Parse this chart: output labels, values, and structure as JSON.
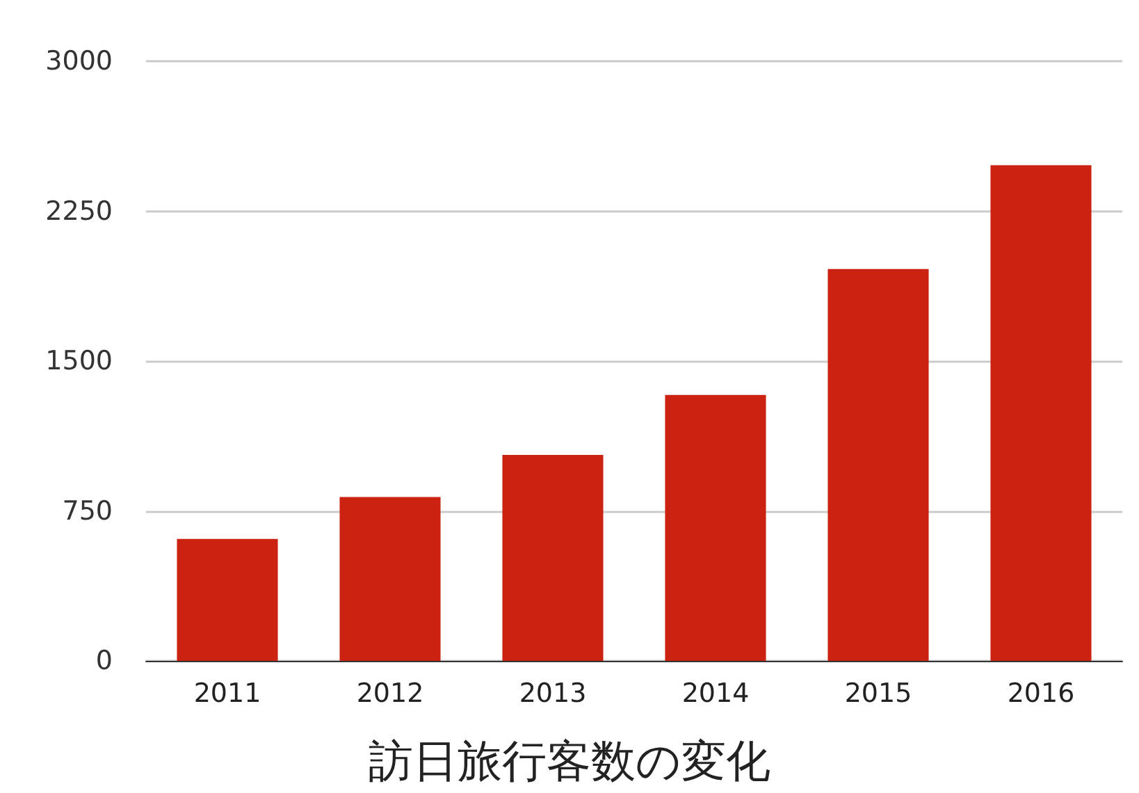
{
  "chart_data": {
    "type": "bar",
    "title": "訪日旅行客数の変化",
    "categories": [
      "2011",
      "2012",
      "2013",
      "2014",
      "2015",
      "2016"
    ],
    "values": [
      610,
      820,
      1030,
      1330,
      1960,
      2480
    ],
    "color": "#cc2211",
    "ylim": [
      0,
      3000
    ],
    "yticks": [
      0,
      750,
      1500,
      2250,
      3000
    ],
    "grid": "y"
  }
}
